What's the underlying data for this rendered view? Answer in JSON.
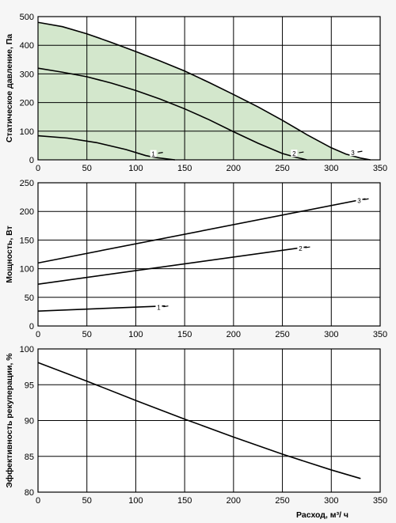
{
  "chart_data": [
    {
      "type": "line",
      "ylabel": "Статическое давление, Па",
      "xlim": [
        0,
        350
      ],
      "ylim": [
        0,
        500
      ],
      "xticks": [
        0,
        50,
        100,
        150,
        200,
        250,
        300,
        350
      ],
      "yticks": [
        0,
        100,
        200,
        300,
        400,
        500
      ],
      "grid": true,
      "fill_color": "#d3e7cc",
      "series": [
        {
          "name": "1",
          "x": [
            0,
            30,
            60,
            90,
            110,
            120,
            140
          ],
          "y": [
            84,
            76,
            60,
            36,
            15,
            8,
            0
          ]
        },
        {
          "name": "2",
          "x": [
            0,
            25,
            50,
            75,
            100,
            125,
            150,
            175,
            200,
            225,
            250,
            265,
            275
          ],
          "y": [
            320,
            306,
            290,
            268,
            242,
            212,
            178,
            140,
            98,
            58,
            22,
            8,
            0
          ]
        },
        {
          "name": "3",
          "x": [
            0,
            25,
            50,
            75,
            100,
            125,
            150,
            175,
            200,
            225,
            250,
            275,
            300,
            315,
            330,
            340
          ],
          "y": [
            480,
            465,
            440,
            410,
            378,
            345,
            310,
            270,
            228,
            185,
            138,
            88,
            42,
            20,
            6,
            0
          ]
        }
      ]
    },
    {
      "type": "line",
      "ylabel": "Мощность, Вт",
      "xlim": [
        0,
        350
      ],
      "ylim": [
        0,
        250
      ],
      "xticks": [
        0,
        50,
        100,
        150,
        200,
        250,
        300,
        350
      ],
      "yticks": [
        0,
        50,
        100,
        150,
        200,
        250
      ],
      "grid": true,
      "series": [
        {
          "name": "1",
          "x": [
            0,
            130
          ],
          "y": [
            26,
            35
          ]
        },
        {
          "name": "2",
          "x": [
            0,
            275
          ],
          "y": [
            73,
            138
          ]
        },
        {
          "name": "3",
          "x": [
            0,
            335
          ],
          "y": [
            110,
            222
          ]
        }
      ]
    },
    {
      "type": "line",
      "ylabel": "Эффективность рекуперации, %",
      "xlabel": "Расход, м³/ ч",
      "xlim": [
        0,
        350
      ],
      "ylim": [
        80,
        100
      ],
      "xticks": [
        0,
        50,
        100,
        150,
        200,
        250,
        300,
        350
      ],
      "yticks": [
        80,
        85,
        90,
        95,
        100
      ],
      "grid": true,
      "series": [
        {
          "name": "",
          "x": [
            0,
            50,
            100,
            150,
            200,
            250,
            300,
            330
          ],
          "y": [
            98.1,
            95.5,
            92.8,
            90.2,
            87.7,
            85.3,
            83.1,
            81.9
          ]
        }
      ]
    }
  ]
}
